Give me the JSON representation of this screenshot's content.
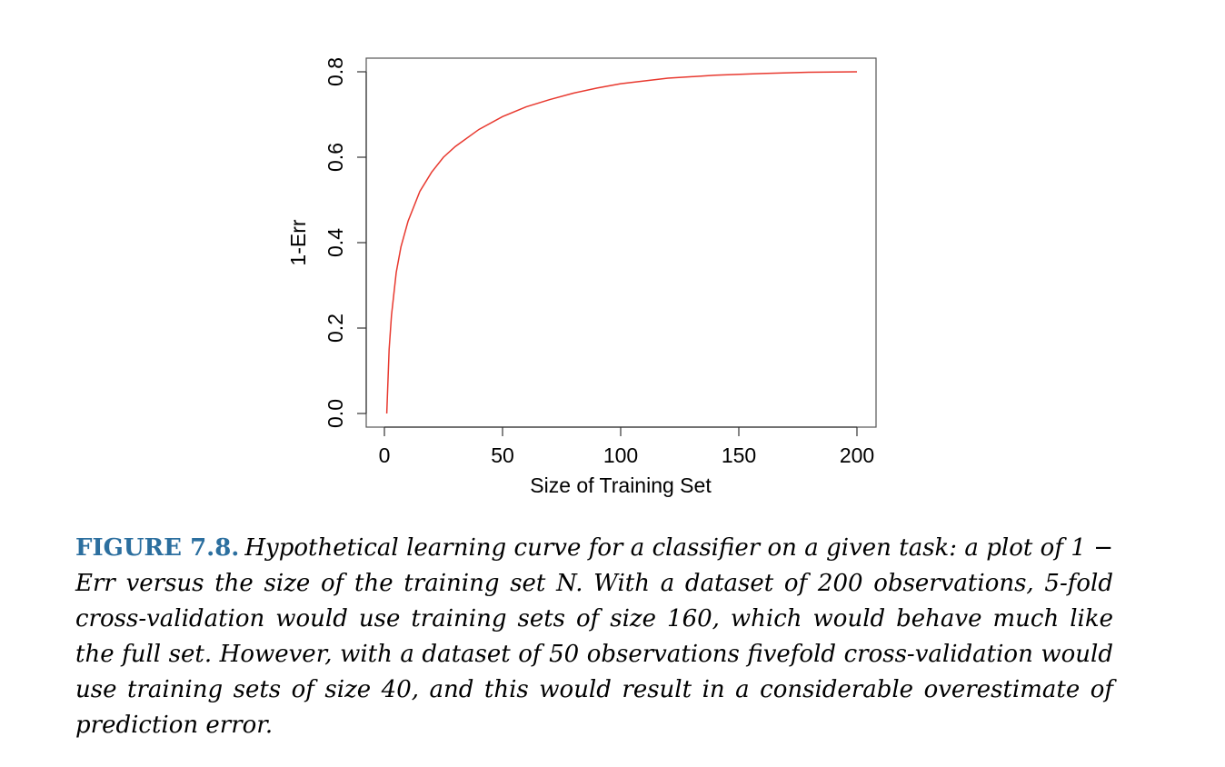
{
  "chart_data": {
    "type": "line",
    "title": "",
    "xlabel": "Size of Training Set",
    "ylabel": "1-Err",
    "xlim": [
      0,
      200
    ],
    "ylim": [
      0,
      0.8
    ],
    "xticks": [
      "0",
      "50",
      "100",
      "150",
      "200"
    ],
    "yticks": [
      "0.0",
      "0.2",
      "0.4",
      "0.6",
      "0.8"
    ],
    "grid": false,
    "series": [
      {
        "color": "#e8392f",
        "x": [
          1,
          2,
          3,
          5,
          7,
          10,
          15,
          20,
          25,
          30,
          40,
          50,
          60,
          70,
          80,
          90,
          100,
          120,
          140,
          160,
          180,
          200
        ],
        "y": [
          0.0,
          0.15,
          0.23,
          0.33,
          0.39,
          0.45,
          0.52,
          0.565,
          0.6,
          0.625,
          0.665,
          0.695,
          0.718,
          0.735,
          0.75,
          0.762,
          0.772,
          0.785,
          0.792,
          0.796,
          0.799,
          0.8
        ]
      }
    ]
  },
  "caption": {
    "label": "FIGURE 7.8.",
    "text": "Hypothetical learning curve for a classifier on a given task: a plot of 1 − Err versus the size of the training set N. With a dataset of 200 observations, 5-fold cross-validation would use training sets of size 160, which would behave much like the full set. However, with a dataset of 50 observations fivefold cross-validation would use training sets of size 40, and this would result in a considerable overestimate of prediction error."
  }
}
